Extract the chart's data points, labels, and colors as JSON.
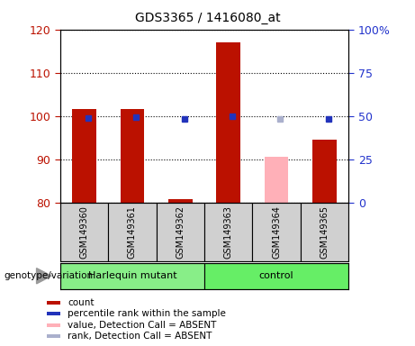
{
  "title": "GDS3365 / 1416080_at",
  "samples": [
    "GSM149360",
    "GSM149361",
    "GSM149362",
    "GSM149363",
    "GSM149364",
    "GSM149365"
  ],
  "count_values": [
    101.5,
    101.5,
    80.8,
    117.0,
    null,
    94.5
  ],
  "percentile_values": [
    49.0,
    49.5,
    48.0,
    50.0,
    null,
    48.5
  ],
  "absent_value_values": [
    null,
    null,
    null,
    null,
    90.5,
    null
  ],
  "absent_rank_values": [
    null,
    null,
    null,
    null,
    48.5,
    null
  ],
  "ylim_left": [
    80,
    120
  ],
  "ylim_right": [
    0,
    100
  ],
  "yticks_left": [
    80,
    90,
    100,
    110,
    120
  ],
  "yticks_right": [
    0,
    25,
    50,
    75,
    100
  ],
  "ytick_labels_right": [
    "0",
    "25",
    "50",
    "75",
    "100%"
  ],
  "count_color": "#bb1100",
  "percentile_color": "#2233bb",
  "absent_value_color": "#ffb0b8",
  "absent_rank_color": "#aab0cc",
  "harlequin_color": "#88ee88",
  "control_color": "#66ee66",
  "label_bg": "#d0d0d0",
  "bar_width": 0.5
}
